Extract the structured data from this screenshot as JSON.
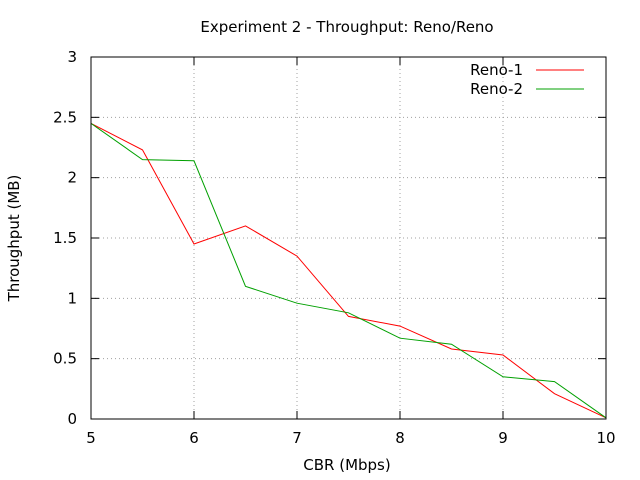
{
  "chart_data": {
    "type": "line",
    "title": "Experiment 2 - Throughput: Reno/Reno",
    "xlabel": "CBR (Mbps)",
    "ylabel": "Throughput (MB)",
    "xlim": [
      5,
      10
    ],
    "ylim": [
      0,
      3
    ],
    "xticks": [
      5,
      6,
      7,
      8,
      9,
      10
    ],
    "yticks": [
      0,
      0.5,
      1,
      1.5,
      2,
      2.5,
      3
    ],
    "xtick_labels": [
      "5",
      "6",
      "7",
      "8",
      "9",
      "10"
    ],
    "ytick_labels": [
      "0",
      "0.5",
      "1",
      "1.5",
      "2",
      "2.5",
      "3"
    ],
    "grid": true,
    "legend_position": "top-right",
    "x": [
      5,
      5.5,
      6,
      6.5,
      7,
      7.5,
      8,
      8.5,
      9,
      9.5,
      10
    ],
    "series": [
      {
        "name": "Reno-1",
        "color": "#ff0000",
        "values": [
          2.45,
          2.23,
          1.45,
          1.6,
          1.35,
          0.85,
          0.77,
          0.58,
          0.53,
          0.21,
          0.01
        ]
      },
      {
        "name": "Reno-2",
        "color": "#00a000",
        "values": [
          2.45,
          2.15,
          2.14,
          1.1,
          0.96,
          0.88,
          0.67,
          0.62,
          0.35,
          0.31,
          0.01
        ]
      }
    ]
  }
}
